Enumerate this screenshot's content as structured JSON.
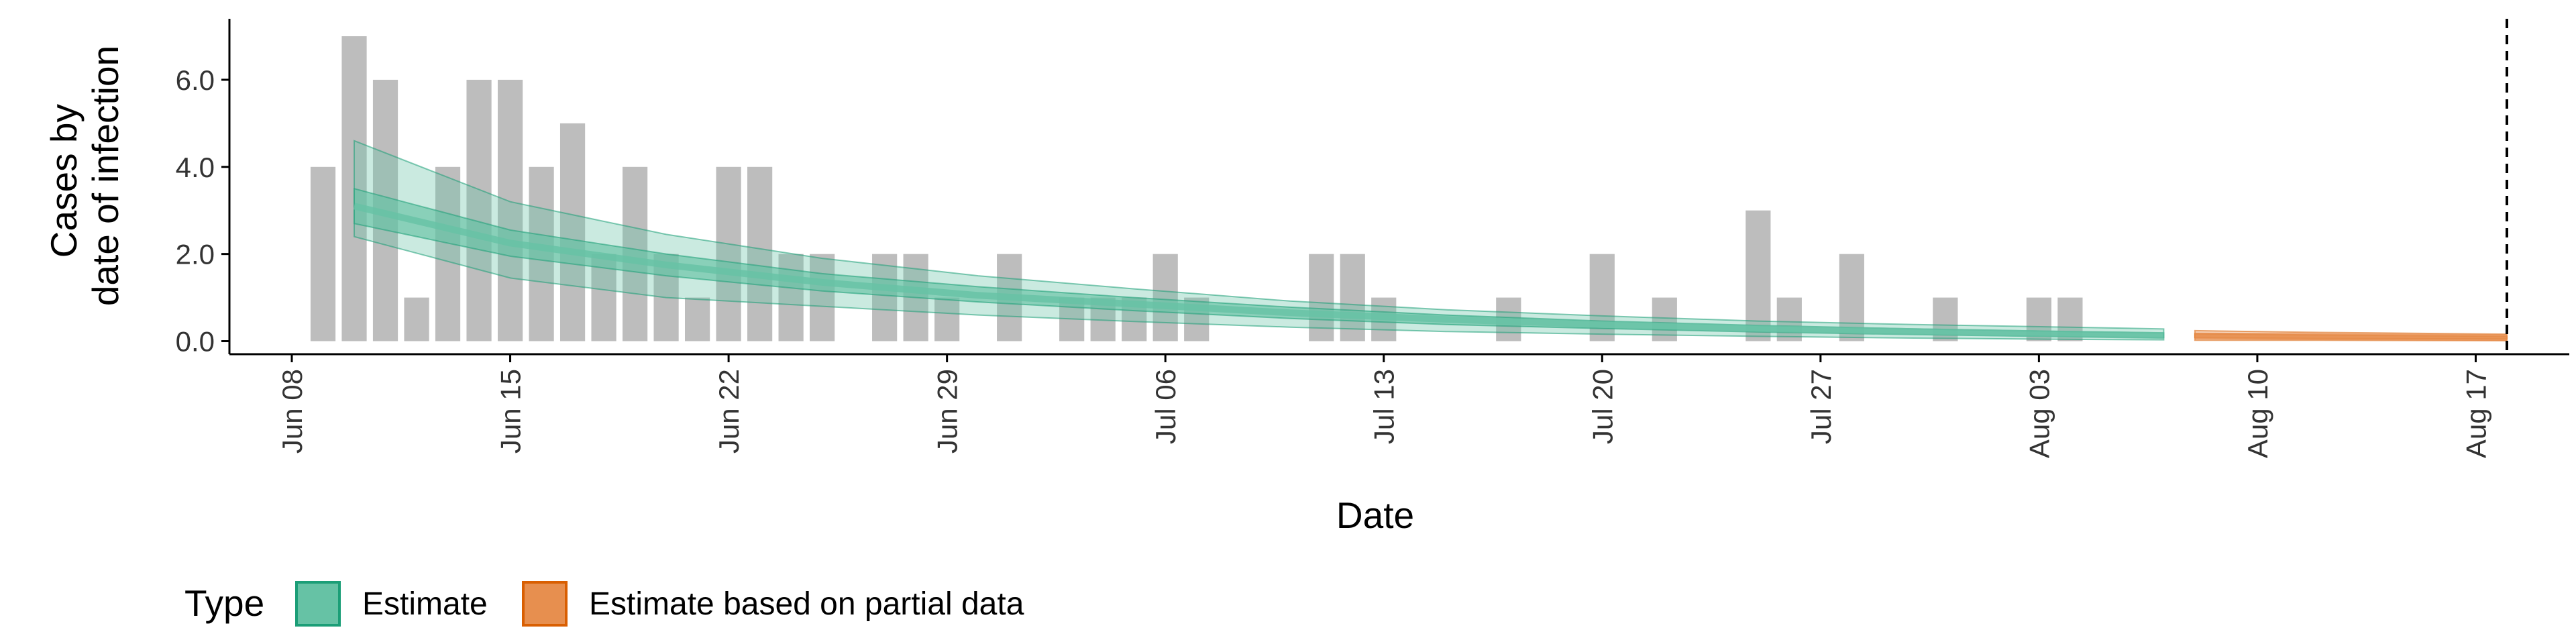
{
  "chart_data": {
    "type": "bar+area",
    "xlabel": "Date",
    "ylabel": [
      "Cases by",
      "date of infection"
    ],
    "yticks": [
      "0.0",
      "2.0",
      "4.0",
      "6.0"
    ],
    "ytick_values": [
      0,
      2,
      4,
      6
    ],
    "ylim": [
      -0.3,
      7.4
    ],
    "xlim": [
      "2020-06-06",
      "2020-08-20"
    ],
    "xticks": [
      "Jun 08",
      "Jun 15",
      "Jun 22",
      "Jun 29",
      "Jul 06",
      "Jul 13",
      "Jul 20",
      "Jul 27",
      "Aug 03",
      "Aug 10",
      "Aug 17"
    ],
    "xtick_dates": [
      "2020-06-08",
      "2020-06-15",
      "2020-06-22",
      "2020-06-29",
      "2020-07-06",
      "2020-07-13",
      "2020-07-20",
      "2020-07-27",
      "2020-08-03",
      "2020-08-10",
      "2020-08-17"
    ],
    "forecast_line_date": "2020-08-18",
    "bar_color": "#bdbdbd",
    "reported_cases": {
      "dates": [
        "2020-06-09",
        "2020-06-10",
        "2020-06-11",
        "2020-06-12",
        "2020-06-13",
        "2020-06-14",
        "2020-06-15",
        "2020-06-16",
        "2020-06-17",
        "2020-06-18",
        "2020-06-19",
        "2020-06-20",
        "2020-06-21",
        "2020-06-22",
        "2020-06-23",
        "2020-06-24",
        "2020-06-25",
        "2020-06-26",
        "2020-06-27",
        "2020-06-28",
        "2020-06-29",
        "2020-06-30",
        "2020-07-01",
        "2020-07-02",
        "2020-07-03",
        "2020-07-04",
        "2020-07-05",
        "2020-07-06",
        "2020-07-07",
        "2020-07-08",
        "2020-07-09",
        "2020-07-10",
        "2020-07-11",
        "2020-07-12",
        "2020-07-13",
        "2020-07-14",
        "2020-07-15",
        "2020-07-16",
        "2020-07-17",
        "2020-07-18",
        "2020-07-19",
        "2020-07-20",
        "2020-07-21",
        "2020-07-22",
        "2020-07-23",
        "2020-07-24",
        "2020-07-25",
        "2020-07-26",
        "2020-07-27",
        "2020-07-28",
        "2020-07-29",
        "2020-07-30",
        "2020-07-31",
        "2020-08-01",
        "2020-08-02",
        "2020-08-03",
        "2020-08-04",
        "2020-08-05"
      ],
      "values": [
        4,
        7,
        6,
        1,
        4,
        6,
        6,
        4,
        5,
        2,
        4,
        2,
        1,
        4,
        4,
        2,
        2,
        0,
        2,
        2,
        1,
        0,
        2,
        0,
        1,
        1,
        1,
        2,
        1,
        0,
        0,
        0,
        2,
        2,
        1,
        0,
        0,
        0,
        1,
        0,
        0,
        2,
        0,
        1,
        0,
        0,
        3,
        1,
        0,
        2,
        0,
        0,
        1,
        0,
        0,
        1,
        1,
        0
      ]
    },
    "series": [
      {
        "name": "Estimate",
        "color": "#66c2a5",
        "stroke": "#1b9e77",
        "dates": [
          "2020-06-10",
          "2020-06-15",
          "2020-06-20",
          "2020-06-25",
          "2020-06-30",
          "2020-07-05",
          "2020-07-10",
          "2020-07-15",
          "2020-07-20",
          "2020-07-25",
          "2020-07-30",
          "2020-08-04",
          "2020-08-07"
        ],
        "outer_upper": [
          4.6,
          3.2,
          2.45,
          1.9,
          1.5,
          1.2,
          0.92,
          0.72,
          0.58,
          0.46,
          0.38,
          0.32,
          0.28
        ],
        "inner_upper": [
          3.5,
          2.55,
          2.0,
          1.55,
          1.25,
          1.0,
          0.78,
          0.6,
          0.46,
          0.36,
          0.28,
          0.22,
          0.19
        ],
        "median": [
          3.1,
          2.25,
          1.75,
          1.35,
          1.05,
          0.85,
          0.65,
          0.5,
          0.38,
          0.29,
          0.22,
          0.16,
          0.13
        ],
        "inner_lower": [
          2.7,
          1.95,
          1.5,
          1.15,
          0.9,
          0.7,
          0.52,
          0.38,
          0.29,
          0.21,
          0.15,
          0.1,
          0.08
        ],
        "outer_lower": [
          2.4,
          1.45,
          1.0,
          0.8,
          0.6,
          0.45,
          0.32,
          0.22,
          0.16,
          0.11,
          0.07,
          0.04,
          0.03
        ]
      },
      {
        "name": "Estimate based on partial data",
        "color": "#e78f4f",
        "stroke": "#d95f02",
        "dates": [
          "2020-08-08",
          "2020-08-12",
          "2020-08-18"
        ],
        "outer_upper": [
          0.24,
          0.2,
          0.16
        ],
        "inner_upper": [
          0.17,
          0.14,
          0.11
        ],
        "median": [
          0.12,
          0.1,
          0.08
        ],
        "inner_lower": [
          0.08,
          0.06,
          0.05
        ],
        "outer_lower": [
          0.02,
          0.02,
          0.01
        ]
      }
    ],
    "legend": {
      "title": "Type",
      "placement": "bottom",
      "items": [
        {
          "label": "Estimate",
          "fill": "#66c2a5",
          "stroke": "#1b9e77"
        },
        {
          "label": "Estimate based on partial data",
          "fill": "#e78f4f",
          "stroke": "#d95f02"
        }
      ]
    }
  }
}
